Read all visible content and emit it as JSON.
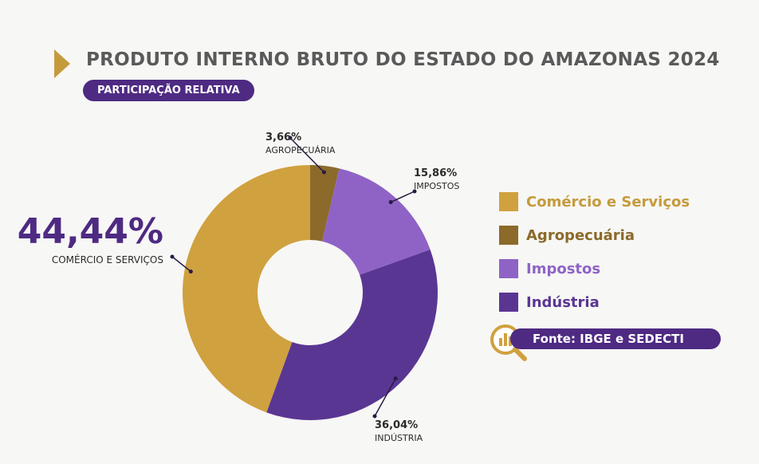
{
  "header": {
    "title": "PRODUTO INTERNO BRUTO DO ESTADO DO AMAZONAS 2024",
    "subtitle": "PARTICIPAÇÃO RELATIVA"
  },
  "source": {
    "label": "Fonte: IBGE e SEDECTI",
    "icon": "magnifier-chart-icon"
  },
  "colors": {
    "comercio": "#d0a13f",
    "agro": "#8b6a2a",
    "impostos": "#8f63c6",
    "industria": "#5a3693",
    "accent": "#4e2a82",
    "gold": "#c59a3d"
  },
  "chart_data": {
    "type": "pie",
    "title": "PRODUTO INTERNO BRUTO DO ESTADO DO AMAZONAS 2024",
    "subtitle": "PARTICIPAÇÃO RELATIVA",
    "categories": [
      "Comércio e Serviços",
      "Agropecuária",
      "Impostos",
      "Indústria"
    ],
    "values": [
      44.44,
      3.66,
      15.86,
      36.04
    ],
    "data_labels": [
      {
        "value": "44,44%",
        "label": "COMÉRCIO E SERVIÇOS"
      },
      {
        "value": "3,66%",
        "label": "AGROPECUÁRIA"
      },
      {
        "value": "15,86%",
        "label": "IMPOSTOS"
      },
      {
        "value": "36,04%",
        "label": "INDÚSTRIA"
      }
    ],
    "legend": {
      "placement": "right",
      "entries": [
        "Comércio e Serviços",
        "Agropecuária",
        "Impostos",
        "Indústria"
      ]
    },
    "donut": true
  }
}
